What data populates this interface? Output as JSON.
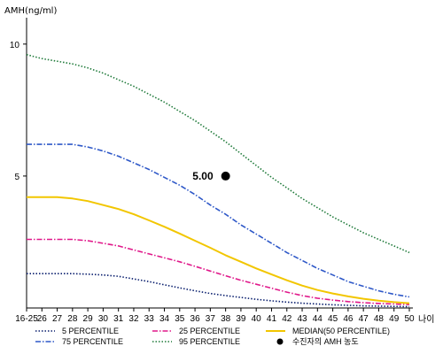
{
  "chart_data": {
    "type": "line",
    "ylabel": "AMH(ng/ml)",
    "xlabel": "나이",
    "categories": [
      "16-25",
      "26",
      "27",
      "28",
      "29",
      "30",
      "31",
      "32",
      "33",
      "34",
      "35",
      "36",
      "37",
      "38",
      "39",
      "40",
      "41",
      "42",
      "43",
      "44",
      "45",
      "46",
      "47",
      "48",
      "49",
      "50"
    ],
    "yticks": [
      "10",
      "5"
    ],
    "ylim": [
      0,
      11
    ],
    "grid": false,
    "legend_position": "bottom",
    "series": [
      {
        "name": "5 PERCENTILE",
        "color": "#0a1f6e",
        "dash": "dotted",
        "values": [
          1.3,
          1.3,
          1.3,
          1.3,
          1.28,
          1.25,
          1.2,
          1.1,
          1.0,
          0.88,
          0.76,
          0.65,
          0.55,
          0.47,
          0.4,
          0.33,
          0.27,
          0.22,
          0.18,
          0.15,
          0.12,
          0.1,
          0.08,
          0.07,
          0.06,
          0.05
        ]
      },
      {
        "name": "25 PERCENTILE",
        "color": "#e0188a",
        "dash": "dashdot",
        "values": [
          2.6,
          2.6,
          2.6,
          2.6,
          2.55,
          2.45,
          2.35,
          2.2,
          2.05,
          1.9,
          1.75,
          1.58,
          1.4,
          1.22,
          1.05,
          0.9,
          0.75,
          0.6,
          0.47,
          0.37,
          0.3,
          0.24,
          0.2,
          0.17,
          0.15,
          0.13
        ]
      },
      {
        "name": "75 PERCENTILE",
        "color": "#2e58c8",
        "dash": "dashdot",
        "values": [
          6.2,
          6.2,
          6.2,
          6.2,
          6.1,
          5.95,
          5.75,
          5.5,
          5.25,
          4.95,
          4.65,
          4.3,
          3.9,
          3.55,
          3.15,
          2.8,
          2.45,
          2.1,
          1.8,
          1.5,
          1.25,
          1.0,
          0.82,
          0.65,
          0.52,
          0.42
        ]
      },
      {
        "name": "95 PERCENTILE",
        "color": "#1f7a3a",
        "dash": "dotted",
        "values": [
          9.6,
          9.45,
          9.35,
          9.25,
          9.1,
          8.9,
          8.65,
          8.4,
          8.1,
          7.8,
          7.45,
          7.1,
          6.7,
          6.3,
          5.85,
          5.4,
          4.95,
          4.55,
          4.15,
          3.8,
          3.45,
          3.15,
          2.85,
          2.6,
          2.35,
          2.1
        ]
      },
      {
        "name": "MEDIAN(50 PERCENTILE)",
        "color": "#f2c600",
        "dash": "solid",
        "values": [
          4.2,
          4.2,
          4.2,
          4.15,
          4.05,
          3.9,
          3.75,
          3.55,
          3.32,
          3.08,
          2.82,
          2.55,
          2.28,
          2.0,
          1.75,
          1.5,
          1.27,
          1.05,
          0.85,
          0.68,
          0.55,
          0.44,
          0.35,
          0.28,
          0.22,
          0.18
        ]
      }
    ],
    "point": {
      "name": "수진자의 AMH 농도",
      "x": "38",
      "y": 5.0,
      "label": "5.00",
      "color": "#000000"
    }
  }
}
